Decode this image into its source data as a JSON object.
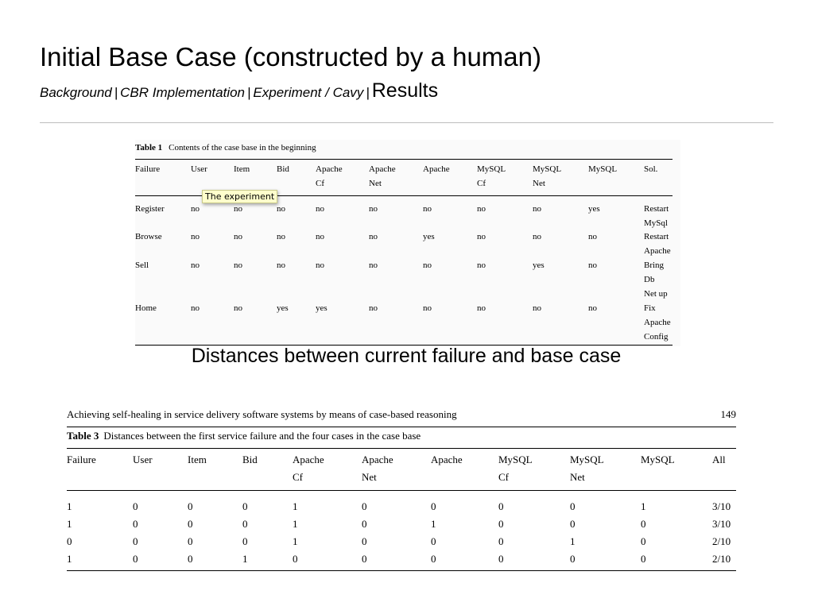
{
  "slide": {
    "title": "Initial Base Case (constructed by a human)",
    "breadcrumb": [
      "Background",
      "CBR Implementation",
      "Experiment / Cavy"
    ],
    "breadcrumb_sep": "|",
    "breadcrumb_current": "Results"
  },
  "table1": {
    "label": "Table 1",
    "caption": "Contents of the case base in the beginning",
    "headers": [
      [
        "Failure"
      ],
      [
        "User"
      ],
      [
        "Item"
      ],
      [
        "Bid"
      ],
      [
        "Apache",
        "Cf"
      ],
      [
        "Apache",
        "Net"
      ],
      [
        "Apache"
      ],
      [
        "MySQL",
        "Cf"
      ],
      [
        "MySQL",
        "Net"
      ],
      [
        "MySQL"
      ],
      [
        "Sol."
      ]
    ],
    "rows": [
      {
        "cells": [
          "Register",
          "no",
          "no",
          "no",
          "no",
          "no",
          "no",
          "no",
          "no",
          "yes"
        ],
        "sol": [
          "Restart",
          "MySql"
        ]
      },
      {
        "cells": [
          "Browse",
          "no",
          "no",
          "no",
          "no",
          "no",
          "yes",
          "no",
          "no",
          "no"
        ],
        "sol": [
          "Restart",
          "Apache"
        ]
      },
      {
        "cells": [
          "Sell",
          "no",
          "no",
          "no",
          "no",
          "no",
          "no",
          "no",
          "yes",
          "no"
        ],
        "sol": [
          "Bring",
          "Db",
          "Net up"
        ]
      },
      {
        "cells": [
          "Home",
          "no",
          "no",
          "yes",
          "yes",
          "no",
          "no",
          "no",
          "no",
          "no"
        ],
        "sol": [
          "Fix",
          "Apache",
          "Config"
        ]
      }
    ],
    "tooltip": "The experiment"
  },
  "caption2": "Distances between current failure and base case",
  "table3": {
    "running_head": "Achieving self-healing in service delivery software systems by means of case-based reasoning",
    "page_number": "149",
    "label": "Table 3",
    "caption": "Distances between the first service failure and the four cases in the case base",
    "headers": [
      [
        "Failure"
      ],
      [
        "User"
      ],
      [
        "Item"
      ],
      [
        "Bid"
      ],
      [
        "Apache",
        "Cf"
      ],
      [
        "Apache",
        "Net"
      ],
      [
        "Apache"
      ],
      [
        "MySQL",
        "Cf"
      ],
      [
        "MySQL",
        "Net"
      ],
      [
        "MySQL"
      ],
      [
        "All"
      ]
    ],
    "rows": [
      [
        "1",
        "0",
        "0",
        "0",
        "1",
        "0",
        "0",
        "0",
        "0",
        "1",
        "3/10"
      ],
      [
        "1",
        "0",
        "0",
        "0",
        "1",
        "0",
        "1",
        "0",
        "0",
        "0",
        "3/10"
      ],
      [
        "0",
        "0",
        "0",
        "0",
        "1",
        "0",
        "0",
        "0",
        "1",
        "0",
        "2/10"
      ],
      [
        "1",
        "0",
        "0",
        "1",
        "0",
        "0",
        "0",
        "0",
        "0",
        "0",
        "2/10"
      ]
    ]
  }
}
